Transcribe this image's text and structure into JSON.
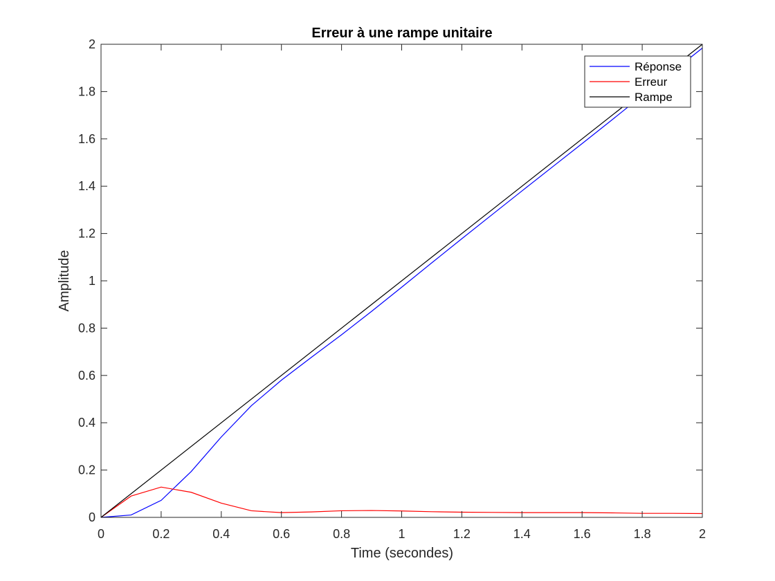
{
  "chart_data": {
    "type": "line",
    "title": "Erreur à une rampe unitaire",
    "xlabel": "Time (secondes)",
    "ylabel": "Amplitude",
    "xlim": [
      0,
      2
    ],
    "ylim": [
      0,
      2
    ],
    "xticks": [
      "0",
      "0.2",
      "0.4",
      "0.6",
      "0.8",
      "1",
      "1.2",
      "1.4",
      "1.6",
      "1.8",
      "2"
    ],
    "yticks": [
      "0",
      "0.2",
      "0.4",
      "0.6",
      "0.8",
      "1",
      "1.2",
      "1.4",
      "1.6",
      "1.8",
      "2"
    ],
    "grid": false,
    "legend_position": "top-right",
    "series": [
      {
        "name": "Réponse",
        "color": "#0000ff",
        "x": [
          0,
          0.1,
          0.2,
          0.3,
          0.4,
          0.5,
          0.6,
          0.7,
          0.8,
          0.9,
          1.0,
          1.1,
          1.2,
          1.3,
          1.4,
          1.5,
          1.6,
          1.7,
          1.8,
          1.9,
          2.0
        ],
        "y": [
          0,
          0.01,
          0.072,
          0.194,
          0.34,
          0.472,
          0.58,
          0.677,
          0.772,
          0.871,
          0.973,
          1.076,
          1.178,
          1.279,
          1.38,
          1.48,
          1.58,
          1.681,
          1.783,
          1.883,
          1.984
        ]
      },
      {
        "name": "Erreur",
        "color": "#ff0000",
        "x": [
          0,
          0.1,
          0.2,
          0.3,
          0.4,
          0.5,
          0.6,
          0.7,
          0.8,
          0.9,
          1.0,
          1.1,
          1.2,
          1.3,
          1.4,
          1.5,
          1.6,
          1.7,
          1.8,
          1.9,
          2.0
        ],
        "y": [
          0,
          0.09,
          0.128,
          0.106,
          0.06,
          0.028,
          0.02,
          0.023,
          0.028,
          0.029,
          0.027,
          0.024,
          0.022,
          0.021,
          0.02,
          0.02,
          0.02,
          0.019,
          0.017,
          0.017,
          0.016
        ]
      },
      {
        "name": "Rampe",
        "color": "#000000",
        "x": [
          0,
          2
        ],
        "y": [
          0,
          2
        ]
      }
    ]
  }
}
